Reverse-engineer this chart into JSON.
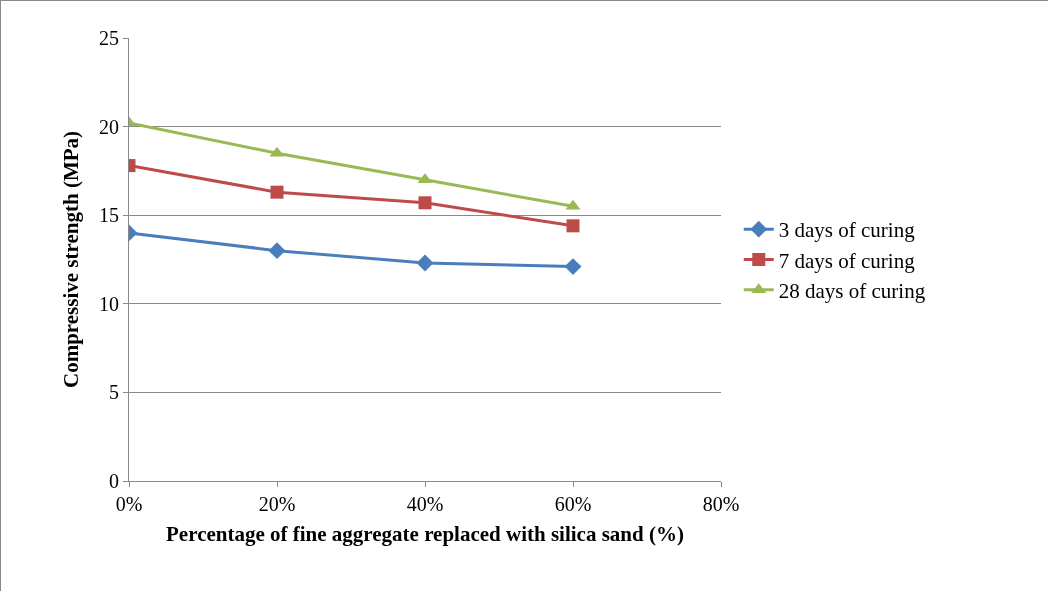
{
  "chart_data": {
    "type": "line",
    "xlabel": "Percentage of fine aggregate replaced with silica sand (%)",
    "ylabel": "Compressive strength (MPa)",
    "x": [
      0,
      20,
      40,
      60
    ],
    "series": [
      {
        "name": "3 days of curing",
        "color": "#4a7ebb",
        "marker": "diamond",
        "values": [
          14.0,
          13.0,
          12.3,
          12.1
        ]
      },
      {
        "name": "7 days of curing",
        "color": "#be4b48",
        "marker": "square",
        "values": [
          17.8,
          16.3,
          15.7,
          14.4
        ]
      },
      {
        "name": "28 days of curing",
        "color": "#98b954",
        "marker": "triangle",
        "values": [
          20.2,
          18.5,
          17.0,
          15.5
        ]
      }
    ],
    "xlim": [
      0,
      80
    ],
    "xticks": [
      {
        "value": 0,
        "label": "0%"
      },
      {
        "value": 20,
        "label": "20%"
      },
      {
        "value": 40,
        "label": "40%"
      },
      {
        "value": 60,
        "label": "60%"
      },
      {
        "value": 80,
        "label": "80%"
      }
    ],
    "ylim": [
      0,
      25
    ],
    "yticks": [
      0,
      5,
      10,
      15,
      20,
      25
    ],
    "grid": "y",
    "legend": "right"
  }
}
